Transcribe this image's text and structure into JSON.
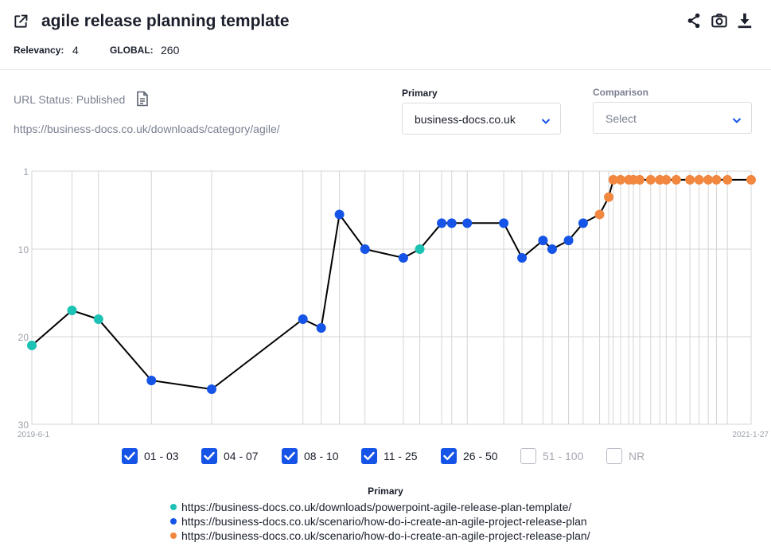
{
  "header": {
    "title": "agile release planning template",
    "relevancy_label": "Relevancy:",
    "relevancy_value": "4",
    "global_label": "GLOBAL:",
    "global_value": "260",
    "icons": [
      "external-link-icon",
      "share-icon",
      "camera-icon",
      "download-icon"
    ]
  },
  "info": {
    "url_status": "URL Status: Published",
    "url": "https://business-docs.co.uk/downloads/category/agile/"
  },
  "primary": {
    "label": "Primary",
    "value": "business-docs.co.uk"
  },
  "comparison": {
    "label": "Comparison",
    "value": "Select"
  },
  "colors": {
    "accent": "#1554e6",
    "teal": "#1cc2b4",
    "blue": "#1554e6",
    "orange": "#f2873f",
    "line": "#000000",
    "grid": "#d4d4d4"
  },
  "chart_data": {
    "type": "line",
    "ylim": [
      30,
      1
    ],
    "yticks": [
      1,
      10,
      20,
      30
    ],
    "x_start_label": "2019-6-1",
    "x_end_label": "2021-1-27",
    "series_colors": [
      "#1cc2b4",
      "#1554e6",
      "#f2873f"
    ],
    "points": [
      {
        "x": "2019-06-01",
        "y": 21,
        "s": 0
      },
      {
        "x": "2019-07-15",
        "y": 17,
        "s": 0
      },
      {
        "x": "2019-08-13",
        "y": 18,
        "s": 0
      },
      {
        "x": "2019-10-10",
        "y": 25,
        "s": 1
      },
      {
        "x": "2019-12-15",
        "y": 26,
        "s": 1
      },
      {
        "x": "2020-03-24",
        "y": 18,
        "s": 1
      },
      {
        "x": "2020-04-13",
        "y": 19,
        "s": 1
      },
      {
        "x": "2020-05-03",
        "y": 6,
        "s": 1
      },
      {
        "x": "2020-05-31",
        "y": 10,
        "s": 1
      },
      {
        "x": "2020-07-12",
        "y": 11,
        "s": 1
      },
      {
        "x": "2020-07-30",
        "y": 10,
        "s": 0
      },
      {
        "x": "2020-08-23",
        "y": 7,
        "s": 1
      },
      {
        "x": "2020-09-03",
        "y": 7,
        "s": 1
      },
      {
        "x": "2020-09-20",
        "y": 7,
        "s": 1
      },
      {
        "x": "2020-10-30",
        "y": 7,
        "s": 1
      },
      {
        "x": "2020-11-19",
        "y": 11,
        "s": 1
      },
      {
        "x": "2020-12-12",
        "y": 9,
        "s": 1
      },
      {
        "x": "2020-12-22",
        "y": 10,
        "s": 1
      },
      {
        "x": "2021-01-09",
        "y": 9,
        "s": 1
      },
      {
        "x": "2021-01-25",
        "y": 7,
        "s": 1
      },
      {
        "x": "2021-02-12",
        "y": 6,
        "s": 2
      },
      {
        "x": "2021-02-22",
        "y": 4,
        "s": 2
      },
      {
        "x": "2021-02-27",
        "y": 2,
        "s": 2
      },
      {
        "x": "2021-03-07",
        "y": 2,
        "s": 2
      },
      {
        "x": "2021-03-16",
        "y": 2,
        "s": 2
      },
      {
        "x": "2021-03-21",
        "y": 2,
        "s": 2
      },
      {
        "x": "2021-03-28",
        "y": 2,
        "s": 2
      },
      {
        "x": "2021-04-09",
        "y": 2,
        "s": 2
      },
      {
        "x": "2021-04-19",
        "y": 2,
        "s": 2
      },
      {
        "x": "2021-04-26",
        "y": 2,
        "s": 2
      },
      {
        "x": "2021-05-07",
        "y": 2,
        "s": 2
      },
      {
        "x": "2021-05-22",
        "y": 2,
        "s": 2
      },
      {
        "x": "2021-06-01",
        "y": 2,
        "s": 2
      },
      {
        "x": "2021-06-11",
        "y": 2,
        "s": 2
      },
      {
        "x": "2021-06-20",
        "y": 2,
        "s": 2
      },
      {
        "x": "2021-07-02",
        "y": 2,
        "s": 2
      },
      {
        "x": "2021-07-28",
        "y": 2,
        "s": 2
      }
    ]
  },
  "filters": [
    {
      "label": "01 - 03",
      "checked": true
    },
    {
      "label": "04 - 07",
      "checked": true
    },
    {
      "label": "08 - 10",
      "checked": true
    },
    {
      "label": "11 - 25",
      "checked": true
    },
    {
      "label": "26 - 50",
      "checked": true
    },
    {
      "label": "51 - 100",
      "checked": false
    },
    {
      "label": "NR",
      "checked": false
    }
  ],
  "series_legend": {
    "title": "Primary",
    "items": [
      {
        "color": "#1cc2b4",
        "url": "https://business-docs.co.uk/downloads/powerpoint-agile-release-plan-template/"
      },
      {
        "color": "#1554e6",
        "url": "https://business-docs.co.uk/scenario/how-do-i-create-an-agile-project-release-plan"
      },
      {
        "color": "#f2873f",
        "url": "https://business-docs.co.uk/scenario/how-do-i-create-an-agile-project-release-plan/"
      }
    ]
  }
}
